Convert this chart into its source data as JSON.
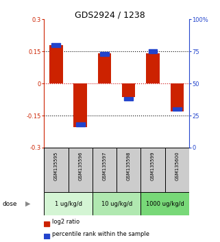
{
  "title": "GDS2924 / 1238",
  "samples": [
    "GSM135595",
    "GSM135596",
    "GSM135597",
    "GSM135598",
    "GSM135599",
    "GSM135600"
  ],
  "log2_ratios": [
    0.18,
    -0.205,
    0.14,
    -0.065,
    0.14,
    -0.13
  ],
  "percentile_ranks": [
    80,
    18,
    73,
    38,
    75,
    30
  ],
  "doses": [
    {
      "label": "1 ug/kg/d",
      "samples": [
        0,
        1
      ]
    },
    {
      "label": "10 ug/kg/d",
      "samples": [
        2,
        3
      ]
    },
    {
      "label": "1000 ug/kg/d",
      "samples": [
        4,
        5
      ]
    }
  ],
  "ylim_left": [
    -0.3,
    0.3
  ],
  "ylim_right": [
    0,
    100
  ],
  "yticks_left": [
    -0.3,
    -0.15,
    0,
    0.15,
    0.3
  ],
  "yticks_right": [
    0,
    25,
    50,
    75,
    100
  ],
  "ytick_labels_left": [
    "-0.3",
    "-0.15",
    "0",
    "0.15",
    "0.3"
  ],
  "ytick_labels_right": [
    "0",
    "25",
    "50",
    "75",
    "100%"
  ],
  "bar_color": "#cc2200",
  "blue_color": "#2244cc",
  "dose_colors": [
    "#d4f5d4",
    "#b0e8b0",
    "#78d878"
  ],
  "sample_box_color": "#cccccc",
  "bar_width": 0.55,
  "dose_label": "dose",
  "hline_colors": {
    "0": "#cc0000",
    "other": "#000000"
  },
  "title_fontsize": 9,
  "tick_fontsize": 6,
  "sample_fontsize": 5,
  "dose_fontsize": 6,
  "legend_fontsize": 6
}
